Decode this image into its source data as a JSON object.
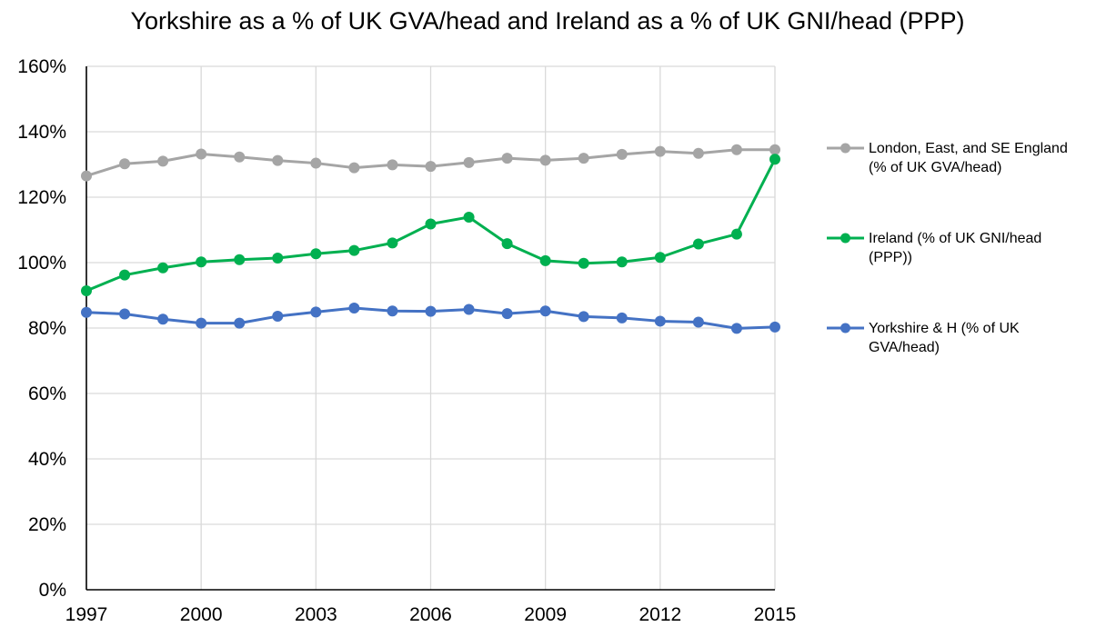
{
  "chart_data": {
    "type": "line",
    "title": "Yorkshire as a % of UK GVA/head and Ireland as a % of UK GNI/head (PPP)",
    "x": [
      1997,
      1998,
      1999,
      2000,
      2001,
      2002,
      2003,
      2004,
      2005,
      2006,
      2007,
      2008,
      2009,
      2010,
      2011,
      2012,
      2013,
      2014,
      2015
    ],
    "x_ticks": [
      "1997",
      "2000",
      "2003",
      "2006",
      "2009",
      "2012",
      "2015"
    ],
    "y_ticks": [
      "0%",
      "20%",
      "40%",
      "60%",
      "80%",
      "100%",
      "120%",
      "140%",
      "160%"
    ],
    "ylim": [
      0,
      160
    ],
    "xlim": [
      1997,
      2015
    ],
    "grid": true,
    "legend_position": "right",
    "series": [
      {
        "name": "London, East, and SE England (% of UK GVA/head)",
        "legend_lines": [
          "London, East, and SE England",
          "(% of UK GVA/head)"
        ],
        "color": "#a5a5a5",
        "values": [
          126.5,
          130.2,
          131.0,
          133.2,
          132.3,
          131.2,
          130.4,
          129.0,
          129.9,
          129.4,
          130.6,
          131.9,
          131.3,
          131.9,
          133.1,
          134.0,
          133.4,
          134.5,
          134.5
        ]
      },
      {
        "name": "Ireland (% of UK GNI/head (PPP))",
        "legend_lines": [
          "Ireland (% of UK GNI/head",
          "(PPP))"
        ],
        "color": "#00b050",
        "values": [
          91.4,
          96.2,
          98.4,
          100.2,
          100.9,
          101.4,
          102.7,
          103.7,
          106.0,
          111.8,
          113.9,
          105.8,
          100.6,
          99.8,
          100.2,
          101.6,
          105.7,
          108.7,
          131.6
        ]
      },
      {
        "name": "Yorkshire & H (% of UK GVA/head)",
        "legend_lines": [
          "Yorkshire & H (% of UK",
          "GVA/head)"
        ],
        "color": "#4472c4",
        "values": [
          84.8,
          84.3,
          82.7,
          81.5,
          81.5,
          83.6,
          84.9,
          86.1,
          85.2,
          85.1,
          85.7,
          84.4,
          85.2,
          83.5,
          83.1,
          82.1,
          81.8,
          79.9,
          80.3
        ]
      }
    ]
  }
}
